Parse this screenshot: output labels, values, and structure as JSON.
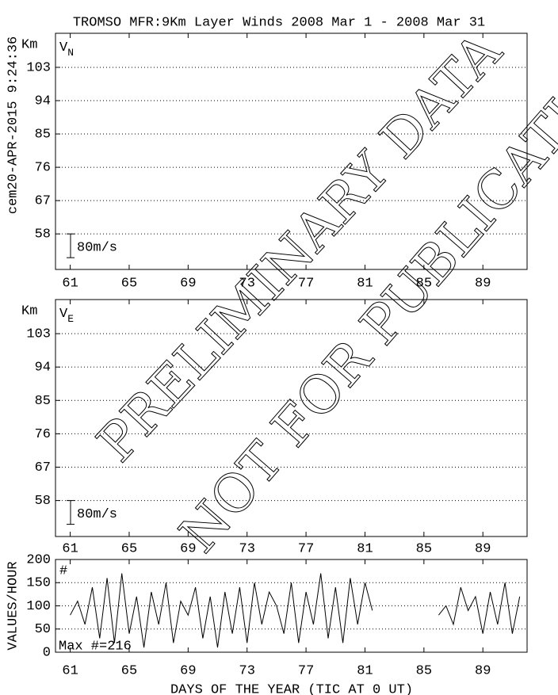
{
  "title": "TROMSO MFR:9Km Layer Winds 2008 Mar  1 - 2008 Mar 31",
  "side_label": "cem20-APR-2015  9:24:36",
  "watermark": [
    "PRELIMINARY DATA",
    "NOT FOR PUBLICATION"
  ],
  "chart_data": [
    {
      "type": "profile",
      "label": "V",
      "label_sub": "N",
      "y_unit": "Km",
      "scale_label": "80m/s",
      "xlim": [
        60,
        92
      ],
      "xticks": [
        61,
        65,
        69,
        73,
        77,
        81,
        85,
        89
      ],
      "ylim": [
        48.4,
        112.2
      ],
      "yticks": [
        58,
        67,
        76,
        85,
        94,
        103
      ],
      "grid": true
    },
    {
      "type": "profile",
      "label": "V",
      "label_sub": "E",
      "y_unit": "Km",
      "scale_label": "80m/s",
      "xlim": [
        60,
        92
      ],
      "xticks": [
        61,
        65,
        69,
        73,
        77,
        81,
        85,
        89
      ],
      "ylim": [
        48.3,
        112.2
      ],
      "yticks": [
        58,
        67,
        76,
        85,
        94,
        103
      ],
      "grid": true
    },
    {
      "type": "line",
      "ylabel": "VALUES/HOUR",
      "annotation": "#",
      "note": "Max #=216",
      "xlabel": "DAYS OF THE YEAR (TIC AT 0 UT)",
      "xlim": [
        60,
        92
      ],
      "xticks": [
        61,
        65,
        69,
        73,
        77,
        81,
        85,
        89
      ],
      "ylim": [
        0,
        200
      ],
      "yticks": [
        0,
        50,
        100,
        150,
        200
      ],
      "grid": true,
      "color": "#000000",
      "x": [
        61,
        61.5,
        62,
        62.5,
        63,
        63.5,
        64,
        64.5,
        65,
        65.5,
        66,
        66.5,
        67,
        67.5,
        68,
        68.5,
        69,
        69.5,
        70,
        70.5,
        71,
        71.5,
        72,
        72.5,
        73,
        73.5,
        74,
        74.5,
        75,
        75.5,
        76,
        76.5,
        77,
        77.5,
        78,
        78.5,
        79,
        79.5,
        80,
        80.5,
        81,
        81.5,
        82,
        82.5,
        83,
        83.5,
        84,
        84.5,
        85,
        85.5,
        86,
        86.5,
        87,
        87.5,
        88,
        88.5,
        89,
        89.5,
        90,
        90.5,
        91,
        91.5
      ],
      "values": [
        80,
        110,
        60,
        140,
        30,
        160,
        20,
        170,
        40,
        120,
        10,
        130,
        60,
        150,
        20,
        110,
        80,
        140,
        30,
        120,
        10,
        130,
        40,
        140,
        20,
        150,
        60,
        130,
        100,
        40,
        150,
        20,
        130,
        60,
        170,
        30,
        140,
        20,
        160,
        60,
        150,
        90,
        null,
        null,
        null,
        null,
        null,
        null,
        null,
        null,
        80,
        100,
        60,
        140,
        90,
        120,
        40,
        130,
        60,
        150,
        40,
        120
      ]
    }
  ]
}
